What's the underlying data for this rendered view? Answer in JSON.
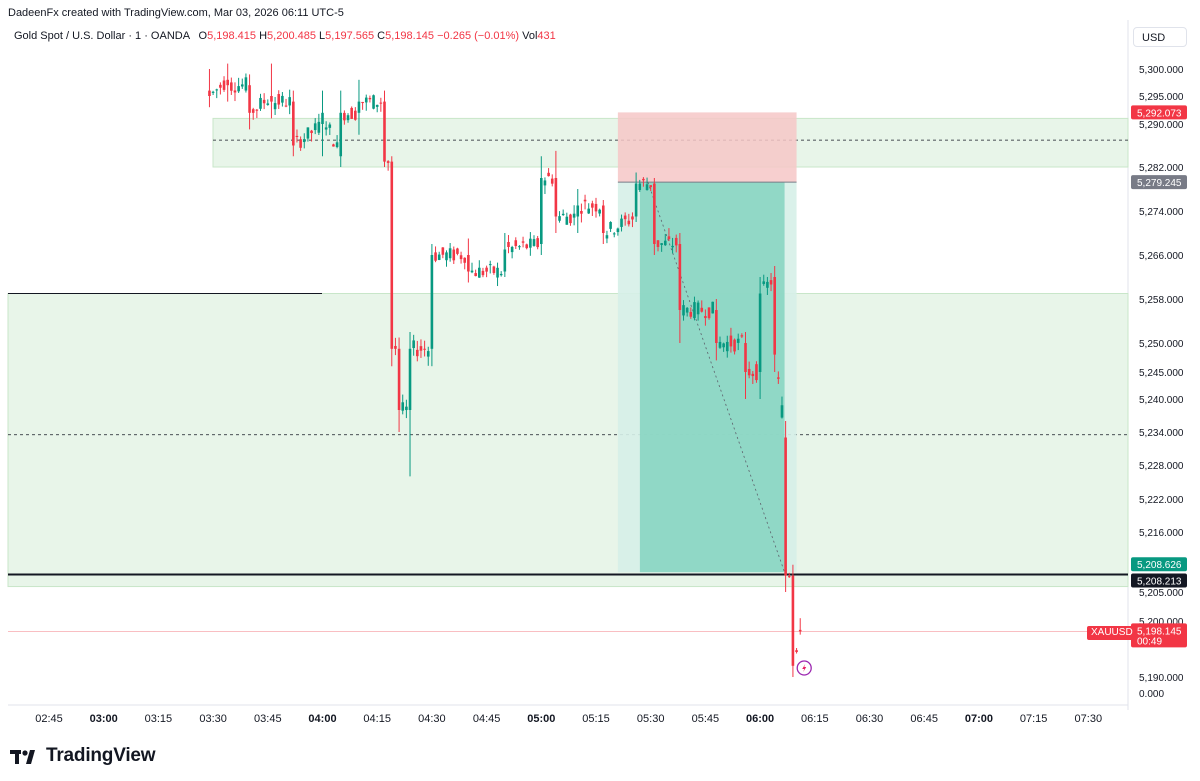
{
  "header": {
    "credit": "DadeenFx created with TradingView.com, Mar 03, 2026 06:11 UTC-5"
  },
  "legend": {
    "symbol": "Gold Spot / U.S. Dollar · 1 · OANDA",
    "open_label": "O",
    "open": "5,198.415",
    "high_label": "H",
    "high": "5,200.485",
    "low_label": "L",
    "low": "5,197.565",
    "close_label": "C",
    "close": "5,198.145",
    "change": "−0.265 (−0.01%)",
    "vol_label": "Vol",
    "vol": "431"
  },
  "currency_button": "USD",
  "brand": {
    "name": "TradingView",
    "logo_icon": "tradingview-logo-icon"
  },
  "symbol_tag": "XAUUSD",
  "colors": {
    "up": "#089981",
    "down": "#f23645",
    "zone": "#e8f5e9",
    "profit": "#84d3c0",
    "stop": "#f6c7c7",
    "label_red": "#f23645",
    "label_green": "#089981",
    "label_gray": "#787b86"
  },
  "chart_data": {
    "type": "candlestick",
    "symbol": "XAUUSD",
    "timeframe": "1",
    "x_ticks": [
      "02:45",
      "03:00",
      "03:15",
      "03:30",
      "03:45",
      "04:00",
      "04:15",
      "04:30",
      "04:45",
      "05:00",
      "05:15",
      "05:30",
      "05:45",
      "06:00",
      "06:15",
      "06:30",
      "06:45",
      "07:00",
      "07:15",
      "07:30"
    ],
    "x_bold_ticks": [
      "03:00",
      "04:00",
      "05:00",
      "06:00",
      "07:00"
    ],
    "y_ticks": [
      "5,300.000",
      "5,295.000",
      "5,290.000",
      "5,282.000",
      "5,274.000",
      "5,266.000",
      "5,258.000",
      "5,250.000",
      "5,245.000",
      "5,240.000",
      "5,234.000",
      "5,228.000",
      "5,222.000",
      "5,216.000",
      "5,205.000",
      "5,200.000",
      "5,190.000",
      "0.000"
    ],
    "price_labels": [
      {
        "name": "stop-level",
        "text": "5,292.073",
        "color": "#f23645"
      },
      {
        "name": "entry-level",
        "text": "5,279.245",
        "color": "#787b86"
      },
      {
        "name": "target-level",
        "text": "5,208.626",
        "color": "#089981"
      },
      {
        "name": "support-line",
        "text": "5,208.213",
        "color": "#131722"
      },
      {
        "name": "last-price",
        "text": "5,198.145",
        "sub": "00:49",
        "color": "#f23645"
      }
    ],
    "series_ohlc_approx": [
      {
        "t": "03:29",
        "o": 5296,
        "h": 5300,
        "l": 5293,
        "c": 5295
      },
      {
        "t": "03:34",
        "o": 5298,
        "h": 5301,
        "l": 5294,
        "c": 5297
      },
      {
        "t": "03:40",
        "o": 5297,
        "h": 5299,
        "l": 5289,
        "c": 5292
      },
      {
        "t": "03:46",
        "o": 5295,
        "h": 5301,
        "l": 5291,
        "c": 5294
      },
      {
        "t": "03:52",
        "o": 5294,
        "h": 5296,
        "l": 5284,
        "c": 5286
      },
      {
        "t": "04:00",
        "o": 5290,
        "h": 5296,
        "l": 5284,
        "c": 5292
      },
      {
        "t": "04:05",
        "o": 5284,
        "h": 5296,
        "l": 5282,
        "c": 5292
      },
      {
        "t": "04:10",
        "o": 5292,
        "h": 5298,
        "l": 5288,
        "c": 5294
      },
      {
        "t": "04:17",
        "o": 5294,
        "h": 5296,
        "l": 5282,
        "c": 5283
      },
      {
        "t": "04:19",
        "o": 5283,
        "h": 5284,
        "l": 5246,
        "c": 5249
      },
      {
        "t": "04:21",
        "o": 5249,
        "h": 5251,
        "l": 5234,
        "c": 5238
      },
      {
        "t": "04:24",
        "o": 5238,
        "h": 5252,
        "l": 5226,
        "c": 5249
      },
      {
        "t": "04:30",
        "o": 5249,
        "h": 5268,
        "l": 5246,
        "c": 5266
      },
      {
        "t": "04:40",
        "o": 5266,
        "h": 5269,
        "l": 5261,
        "c": 5263
      },
      {
        "t": "04:50",
        "o": 5263,
        "h": 5270,
        "l": 5262,
        "c": 5267
      },
      {
        "t": "05:00",
        "o": 5268,
        "h": 5284,
        "l": 5266,
        "c": 5280
      },
      {
        "t": "05:04",
        "o": 5280,
        "h": 5285,
        "l": 5270,
        "c": 5273
      },
      {
        "t": "05:10",
        "o": 5273,
        "h": 5278,
        "l": 5270,
        "c": 5275
      },
      {
        "t": "05:17",
        "o": 5275,
        "h": 5276,
        "l": 5268,
        "c": 5270
      },
      {
        "t": "05:26",
        "o": 5273,
        "h": 5281,
        "l": 5272,
        "c": 5279
      },
      {
        "t": "05:31",
        "o": 5279,
        "h": 5280,
        "l": 5266,
        "c": 5268
      },
      {
        "t": "05:38",
        "o": 5268,
        "h": 5270,
        "l": 5250,
        "c": 5256
      },
      {
        "t": "05:48",
        "o": 5256,
        "h": 5258,
        "l": 5247,
        "c": 5250
      },
      {
        "t": "05:56",
        "o": 5250,
        "h": 5252,
        "l": 5240,
        "c": 5245
      },
      {
        "t": "06:00",
        "o": 5245,
        "h": 5262,
        "l": 5240,
        "c": 5259
      },
      {
        "t": "06:04",
        "o": 5262,
        "h": 5264,
        "l": 5245,
        "c": 5248
      },
      {
        "t": "06:07",
        "o": 5233,
        "h": 5236,
        "l": 5205,
        "c": 5208
      },
      {
        "t": "06:09",
        "o": 5208,
        "h": 5210,
        "l": 5190,
        "c": 5192
      },
      {
        "t": "06:11",
        "o": 5198.415,
        "h": 5200.485,
        "l": 5197.565,
        "c": 5198.145
      }
    ],
    "annotations": {
      "upper_zone": [
        5282,
        5291
      ],
      "upper_zone_mid": 5287,
      "lower_zone": [
        5206,
        5259
      ],
      "lower_zone_mid": 5233.5,
      "support_line": 5208.213,
      "short_position": {
        "entry": 5279.245,
        "stop": 5292.073,
        "target": 5208.626,
        "from": "05:21",
        "to": "06:10"
      }
    }
  }
}
